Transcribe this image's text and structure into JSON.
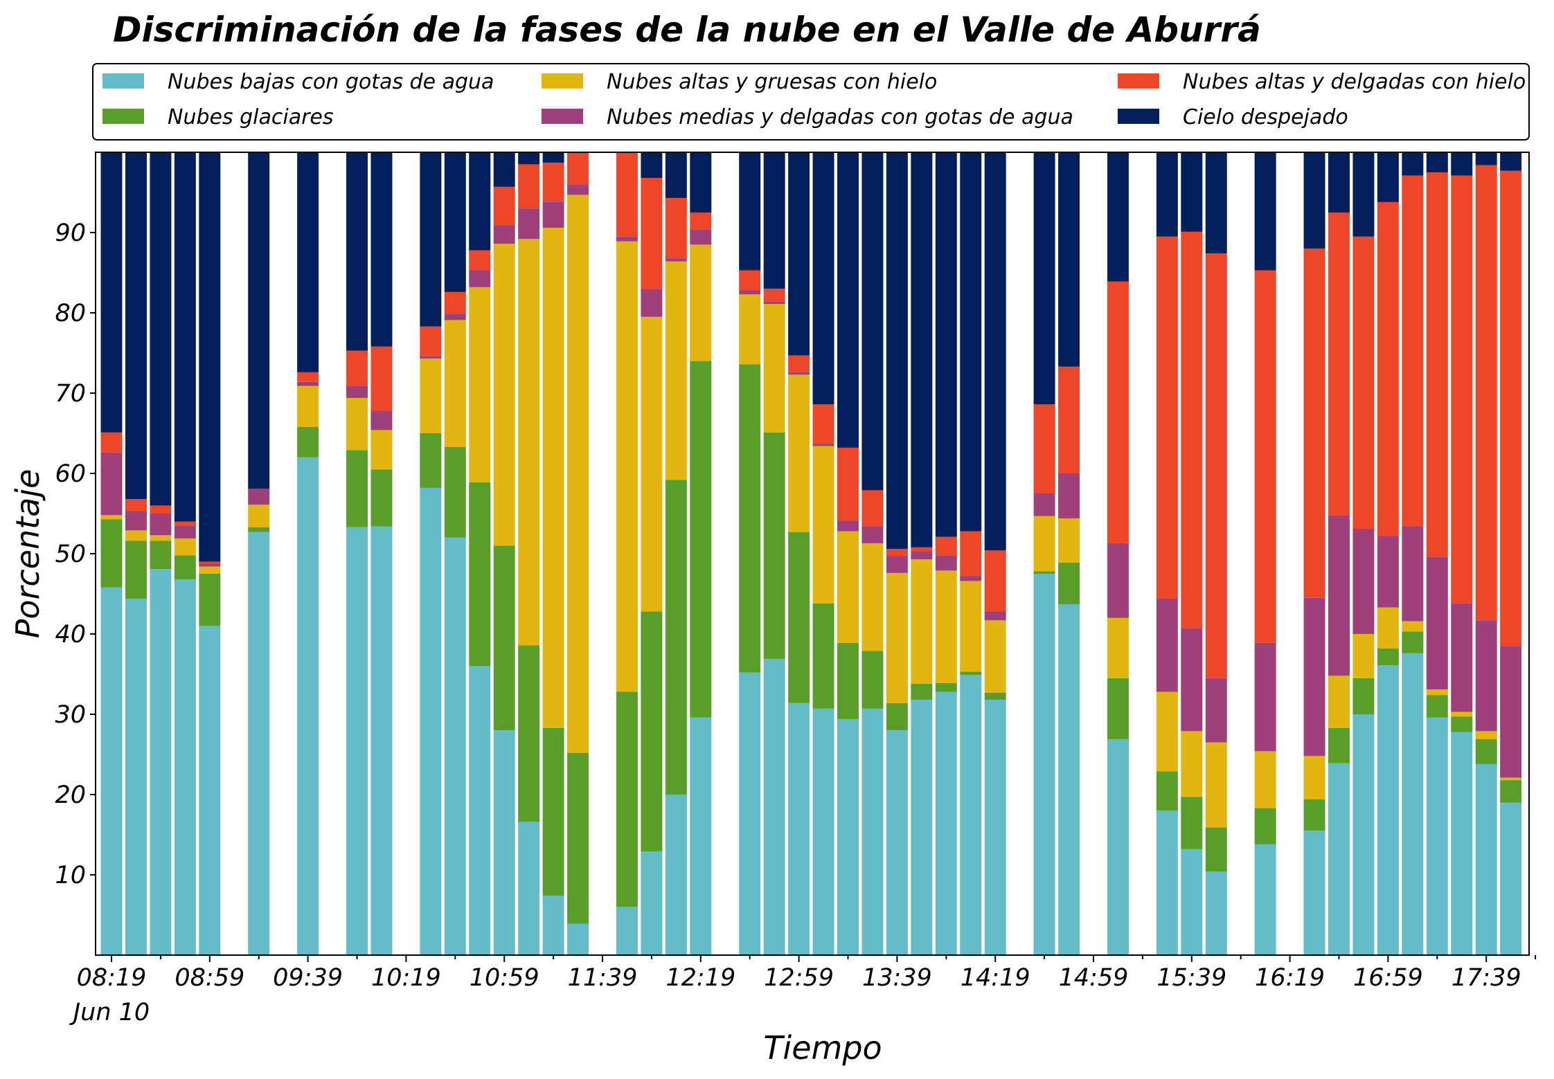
{
  "chart_data": {
    "type": "bar",
    "stacked": true,
    "title": "Discriminación de la fases de la nube en el Valle de Aburrá",
    "xlabel": "Tiempo",
    "ylabel": "Porcentaje",
    "ylim": [
      0,
      100
    ],
    "yticks": [
      10,
      20,
      30,
      40,
      50,
      60,
      70,
      80,
      90
    ],
    "xticks": [
      {
        "slot": 0,
        "label": "08:19",
        "sublabel": "Jun 10"
      },
      {
        "slot": 4,
        "label": "08:59"
      },
      {
        "slot": 8,
        "label": "09:39"
      },
      {
        "slot": 12,
        "label": "10:19"
      },
      {
        "slot": 16,
        "label": "10:59"
      },
      {
        "slot": 20,
        "label": "11:39"
      },
      {
        "slot": 24,
        "label": "12:19"
      },
      {
        "slot": 28,
        "label": "12:59"
      },
      {
        "slot": 32,
        "label": "13:39"
      },
      {
        "slot": 36,
        "label": "14:19"
      },
      {
        "slot": 40,
        "label": "14:59"
      },
      {
        "slot": 44,
        "label": "15:39"
      },
      {
        "slot": 48,
        "label": "16:19"
      },
      {
        "slot": 52,
        "label": "16:59"
      },
      {
        "slot": 56,
        "label": "17:39"
      }
    ],
    "grid": false,
    "legend_position": "top",
    "series": [
      {
        "name": "Nubes bajas con gotas de agua",
        "color": "#63bcc8"
      },
      {
        "name": "Nubes glaciares",
        "color": "#5a9e2a"
      },
      {
        "name": "Nubes altas y gruesas con hielo",
        "color": "#e2b511"
      },
      {
        "name": "Nubes medias y delgadas con gotas de agua",
        "color": "#a0407a"
      },
      {
        "name": "Nubes altas y delgadas con hielo",
        "color": "#ee4629"
      },
      {
        "name": "Cielo despejado",
        "color": "#031f5c"
      }
    ],
    "bars": [
      {
        "slot": 0,
        "values": [
          45.8,
          8.5,
          0.5,
          7.8,
          2.5,
          35.0
        ]
      },
      {
        "slot": 1,
        "values": [
          44.4,
          7.2,
          1.3,
          2.4,
          1.5,
          43.3
        ]
      },
      {
        "slot": 2,
        "values": [
          48.1,
          3.5,
          0.7,
          2.7,
          1.0,
          44.1
        ]
      },
      {
        "slot": 3,
        "values": [
          46.8,
          3.0,
          2.1,
          1.6,
          0.5,
          46.2
        ]
      },
      {
        "slot": 4,
        "values": [
          41.0,
          6.5,
          0.9,
          0.4,
          0.2,
          51.2
        ]
      },
      {
        "slot": 6,
        "values": [
          52.7,
          0.6,
          2.8,
          2.0,
          0.0,
          42.0
        ]
      },
      {
        "slot": 8,
        "values": [
          62.0,
          3.8,
          5.1,
          0.5,
          1.2,
          27.5
        ]
      },
      {
        "slot": 10,
        "values": [
          53.3,
          9.6,
          6.5,
          1.5,
          4.4,
          24.8
        ]
      },
      {
        "slot": 11,
        "values": [
          53.4,
          7.1,
          4.9,
          2.4,
          8.0,
          24.3
        ]
      },
      {
        "slot": 13,
        "values": [
          58.2,
          6.8,
          9.3,
          0.3,
          3.7,
          21.8
        ]
      },
      {
        "slot": 14,
        "values": [
          52.0,
          11.3,
          15.8,
          0.8,
          2.7,
          17.5
        ]
      },
      {
        "slot": 15,
        "values": [
          36.0,
          22.9,
          24.3,
          2.1,
          2.5,
          12.3
        ]
      },
      {
        "slot": 16,
        "values": [
          28.0,
          23.0,
          37.6,
          2.3,
          4.8,
          4.4
        ]
      },
      {
        "slot": 17,
        "values": [
          16.6,
          22.0,
          50.6,
          3.8,
          5.5,
          1.7
        ]
      },
      {
        "slot": 18,
        "values": [
          7.4,
          20.9,
          62.3,
          3.2,
          4.9,
          1.4
        ]
      },
      {
        "slot": 19,
        "values": [
          3.9,
          21.3,
          69.5,
          1.3,
          4.1,
          0.0
        ]
      },
      {
        "slot": 21,
        "values": [
          6.0,
          26.8,
          56.1,
          0.6,
          10.5,
          0.5
        ]
      },
      {
        "slot": 22,
        "values": [
          12.9,
          29.9,
          36.7,
          3.5,
          13.8,
          3.3
        ]
      },
      {
        "slot": 23,
        "values": [
          20.0,
          39.2,
          27.2,
          0.4,
          7.5,
          5.8
        ]
      },
      {
        "slot": 24,
        "values": [
          29.6,
          44.4,
          14.5,
          1.9,
          2.1,
          7.6
        ]
      },
      {
        "slot": 26,
        "values": [
          35.2,
          38.4,
          8.7,
          0.5,
          2.5,
          14.8
        ]
      },
      {
        "slot": 27,
        "values": [
          36.9,
          28.2,
          16.0,
          0.3,
          1.6,
          17.1
        ]
      },
      {
        "slot": 28,
        "values": [
          31.4,
          21.3,
          19.6,
          0.3,
          2.1,
          25.4
        ]
      },
      {
        "slot": 29,
        "values": [
          30.7,
          13.1,
          19.6,
          0.3,
          4.9,
          31.5
        ]
      },
      {
        "slot": 30,
        "values": [
          29.4,
          9.5,
          13.9,
          1.3,
          9.1,
          36.9
        ]
      },
      {
        "slot": 31,
        "values": [
          30.7,
          7.2,
          13.4,
          2.1,
          4.5,
          42.2
        ]
      },
      {
        "slot": 32,
        "values": [
          28.0,
          3.4,
          16.2,
          2.1,
          0.9,
          49.5
        ]
      },
      {
        "slot": 33,
        "values": [
          31.8,
          2.0,
          15.5,
          1.0,
          0.5,
          49.3
        ]
      },
      {
        "slot": 34,
        "values": [
          32.8,
          1.1,
          14.0,
          1.9,
          2.3,
          48.0
        ]
      },
      {
        "slot": 35,
        "values": [
          34.9,
          0.4,
          11.3,
          0.6,
          5.6,
          47.3
        ]
      },
      {
        "slot": 36,
        "values": [
          31.8,
          0.9,
          9.0,
          1.1,
          7.6,
          49.8
        ]
      },
      {
        "slot": 38,
        "values": [
          47.5,
          0.3,
          6.9,
          2.8,
          11.1,
          31.5
        ]
      },
      {
        "slot": 39,
        "values": [
          43.7,
          5.2,
          5.5,
          5.6,
          13.3,
          26.8
        ]
      },
      {
        "slot": 41,
        "values": [
          26.9,
          7.6,
          7.5,
          9.3,
          32.6,
          16.2
        ]
      },
      {
        "slot": 43,
        "values": [
          18.0,
          4.9,
          9.9,
          11.6,
          45.1,
          10.6
        ]
      },
      {
        "slot": 44,
        "values": [
          13.2,
          6.5,
          8.2,
          12.8,
          49.4,
          10.0
        ]
      },
      {
        "slot": 45,
        "values": [
          10.4,
          5.5,
          10.6,
          8.0,
          52.9,
          12.7
        ]
      },
      {
        "slot": 47,
        "values": [
          13.8,
          4.5,
          7.1,
          13.5,
          46.4,
          14.8
        ]
      },
      {
        "slot": 49,
        "values": [
          15.5,
          3.9,
          5.4,
          19.7,
          43.5,
          12.1
        ]
      },
      {
        "slot": 50,
        "values": [
          23.9,
          4.4,
          6.5,
          20.0,
          37.7,
          7.6
        ]
      },
      {
        "slot": 51,
        "values": [
          30.0,
          4.5,
          5.5,
          13.1,
          36.4,
          10.6
        ]
      },
      {
        "slot": 52,
        "values": [
          36.1,
          2.1,
          5.1,
          8.9,
          41.6,
          6.3
        ]
      },
      {
        "slot": 53,
        "values": [
          37.6,
          2.7,
          1.3,
          11.8,
          43.7,
          3.0
        ]
      },
      {
        "slot": 54,
        "values": [
          29.6,
          2.8,
          0.7,
          16.5,
          47.9,
          2.6
        ]
      },
      {
        "slot": 55,
        "values": [
          27.8,
          1.9,
          0.6,
          13.5,
          53.3,
          3.0
        ]
      },
      {
        "slot": 56,
        "values": [
          23.8,
          3.1,
          1.0,
          13.8,
          56.7,
          1.7
        ]
      },
      {
        "slot": 57,
        "values": [
          19.0,
          2.8,
          0.3,
          16.4,
          59.2,
          2.4
        ]
      }
    ]
  }
}
